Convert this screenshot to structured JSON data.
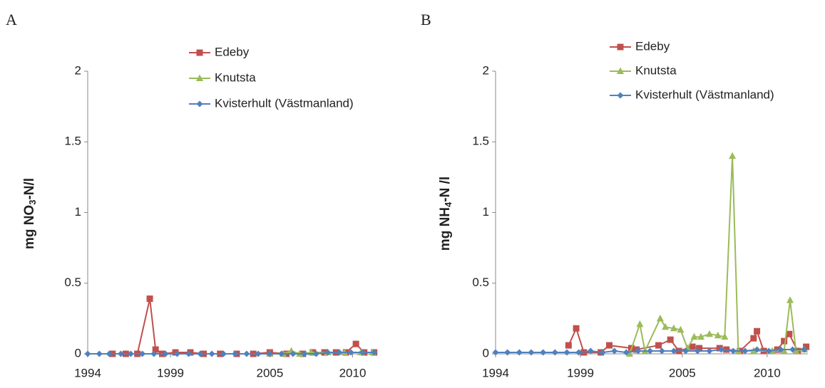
{
  "chart_data": [
    {
      "type": "line",
      "panel_label": "A",
      "ylabel": [
        "mg NO",
        "3",
        "-N/l"
      ],
      "legend": "top-right",
      "xlim": [
        1994,
        2011.4
      ],
      "xticks": [
        1994,
        1999,
        2005,
        2010
      ],
      "ylim": [
        0,
        2
      ],
      "yticks": [
        0,
        0.5,
        1,
        1.5,
        2
      ],
      "series": [
        {
          "name": "Edeby",
          "color": "#c0504d",
          "marker": "square",
          "x": [
            1995.5,
            1996.3,
            1997.0,
            1997.75,
            1998.1,
            1998.5,
            1999.3,
            2000.2,
            2001.0,
            2002.0,
            2003.0,
            2004.0,
            2005.0,
            2006.0,
            2007.0,
            2007.6,
            2008.3,
            2009.0,
            2009.6,
            2010.2,
            2010.7,
            2011.3
          ],
          "values": [
            0,
            0,
            0,
            0.39,
            0.03,
            0,
            0.01,
            0.01,
            0,
            0,
            0,
            0,
            0.01,
            0,
            0,
            0.01,
            0.01,
            0.01,
            0.01,
            0.07,
            0.01,
            0.01
          ]
        },
        {
          "name": "Knutsta",
          "color": "#9bbb59",
          "marker": "triangle",
          "x": [
            2005.0,
            2005.8,
            2006.3,
            2006.8,
            2007.5,
            2008.5,
            2009.5,
            2010.5,
            2011.2
          ],
          "values": [
            0,
            0,
            0.02,
            0,
            0.01,
            0.01,
            0.01,
            0.01,
            0.01
          ]
        },
        {
          "name": "Kvisterhult (Västmanland)",
          "color": "#4f81bd",
          "marker": "diamond",
          "x": [
            1994.0,
            1994.7,
            1995.3,
            1996.0,
            1996.6,
            1997.3,
            1998.0,
            1998.7,
            1999.4,
            2000.1,
            2000.8,
            2001.5,
            2002.2,
            2002.9,
            2003.6,
            2004.3,
            2005.0,
            2005.7,
            2006.4,
            2007.1,
            2007.8,
            2008.5,
            2009.2,
            2009.9,
            2010.6,
            2011.3
          ],
          "values": [
            0,
            0,
            0,
            0,
            0,
            0,
            0,
            0,
            0,
            0,
            0,
            0,
            0,
            0,
            0,
            0,
            0,
            0,
            0,
            0,
            0,
            0.01,
            0.01,
            0.01,
            0.01,
            0.01
          ]
        }
      ]
    },
    {
      "type": "line",
      "panel_label": "B",
      "ylabel": [
        "mg NH",
        "4",
        "-N /l"
      ],
      "legend": "top-right",
      "xlim": [
        1994,
        2012.4
      ],
      "xticks": [
        1994,
        1999,
        2005,
        2010
      ],
      "ylim": [
        0,
        2
      ],
      "yticks": [
        0,
        0.5,
        1,
        1.5,
        2
      ],
      "series": [
        {
          "name": "Edeby",
          "color": "#c0504d",
          "marker": "square",
          "x": [
            1998.3,
            1998.75,
            1999.2,
            2000.2,
            2000.7,
            2002.0,
            2002.3,
            2003.6,
            2004.3,
            2004.8,
            2005.6,
            2006.0,
            2007.2,
            2007.6,
            2008.4,
            2009.2,
            2009.4,
            2009.8,
            2010.6,
            2011.0,
            2011.3,
            2011.8,
            2012.3
          ],
          "values": [
            0.06,
            0.18,
            0.01,
            0.01,
            0.06,
            0.04,
            0.03,
            0.06,
            0.1,
            0.02,
            0.05,
            0.04,
            0.04,
            0.03,
            0.02,
            0.11,
            0.16,
            0.02,
            0.03,
            0.09,
            0.14,
            0.02,
            0.05
          ]
        },
        {
          "name": "Knutsta",
          "color": "#9bbb59",
          "marker": "triangle",
          "x": [
            2001.9,
            2002.5,
            2002.8,
            2003.7,
            2004.0,
            2004.5,
            2004.9,
            2005.3,
            2005.7,
            2006.1,
            2006.6,
            2007.1,
            2007.5,
            2007.95,
            2008.3,
            2009.2,
            2010.3,
            2011.0,
            2011.35,
            2011.7,
            2012.2
          ],
          "values": [
            0.0,
            0.21,
            0.02,
            0.25,
            0.19,
            0.18,
            0.17,
            0.04,
            0.12,
            0.12,
            0.14,
            0.13,
            0.12,
            1.4,
            0.02,
            0.02,
            0.02,
            0.02,
            0.38,
            0.02,
            0.03
          ]
        },
        {
          "name": "Kvisterhult (Västmanland)",
          "color": "#4f81bd",
          "marker": "diamond",
          "x": [
            1994.0,
            1994.7,
            1995.4,
            1996.1,
            1996.8,
            1997.5,
            1998.2,
            1998.9,
            1999.6,
            2000.3,
            2001.0,
            2001.7,
            2002.4,
            2003.1,
            2003.8,
            2004.5,
            2005.2,
            2005.9,
            2006.6,
            2007.3,
            2008.0,
            2008.7,
            2009.4,
            2010.1,
            2010.8,
            2011.5,
            2012.2
          ],
          "values": [
            0.01,
            0.01,
            0.01,
            0.01,
            0.01,
            0.01,
            0.01,
            0.01,
            0.02,
            0.01,
            0.02,
            0.01,
            0.02,
            0.02,
            0.02,
            0.02,
            0.02,
            0.02,
            0.02,
            0.03,
            0.02,
            0.02,
            0.03,
            0.02,
            0.03,
            0.03,
            0.03
          ]
        }
      ]
    }
  ]
}
